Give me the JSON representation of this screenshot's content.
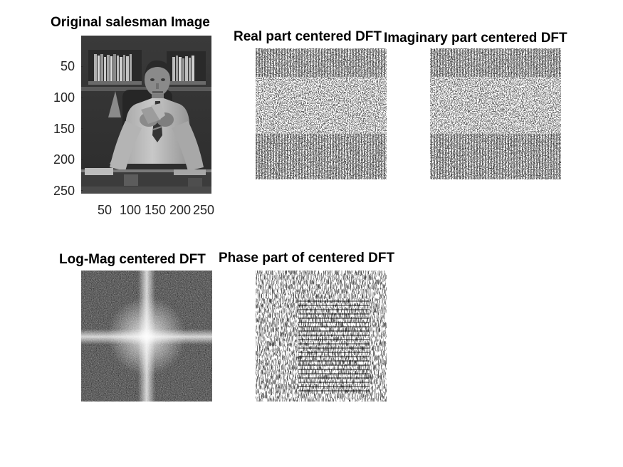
{
  "figure": {
    "panels": [
      {
        "id": "original",
        "title": "Original salesman Image"
      },
      {
        "id": "real",
        "title": "Real part centered DFT"
      },
      {
        "id": "imag",
        "title": "Imaginary part centered DFT"
      },
      {
        "id": "logmag",
        "title": "Log-Mag centered DFT"
      },
      {
        "id": "phase",
        "title": "Phase part of centered DFT"
      }
    ],
    "original_axes": {
      "y_ticks": [
        "50",
        "100",
        "150",
        "200",
        "250"
      ],
      "x_ticks": [
        "50",
        "100",
        "150",
        "200",
        "250"
      ]
    }
  }
}
